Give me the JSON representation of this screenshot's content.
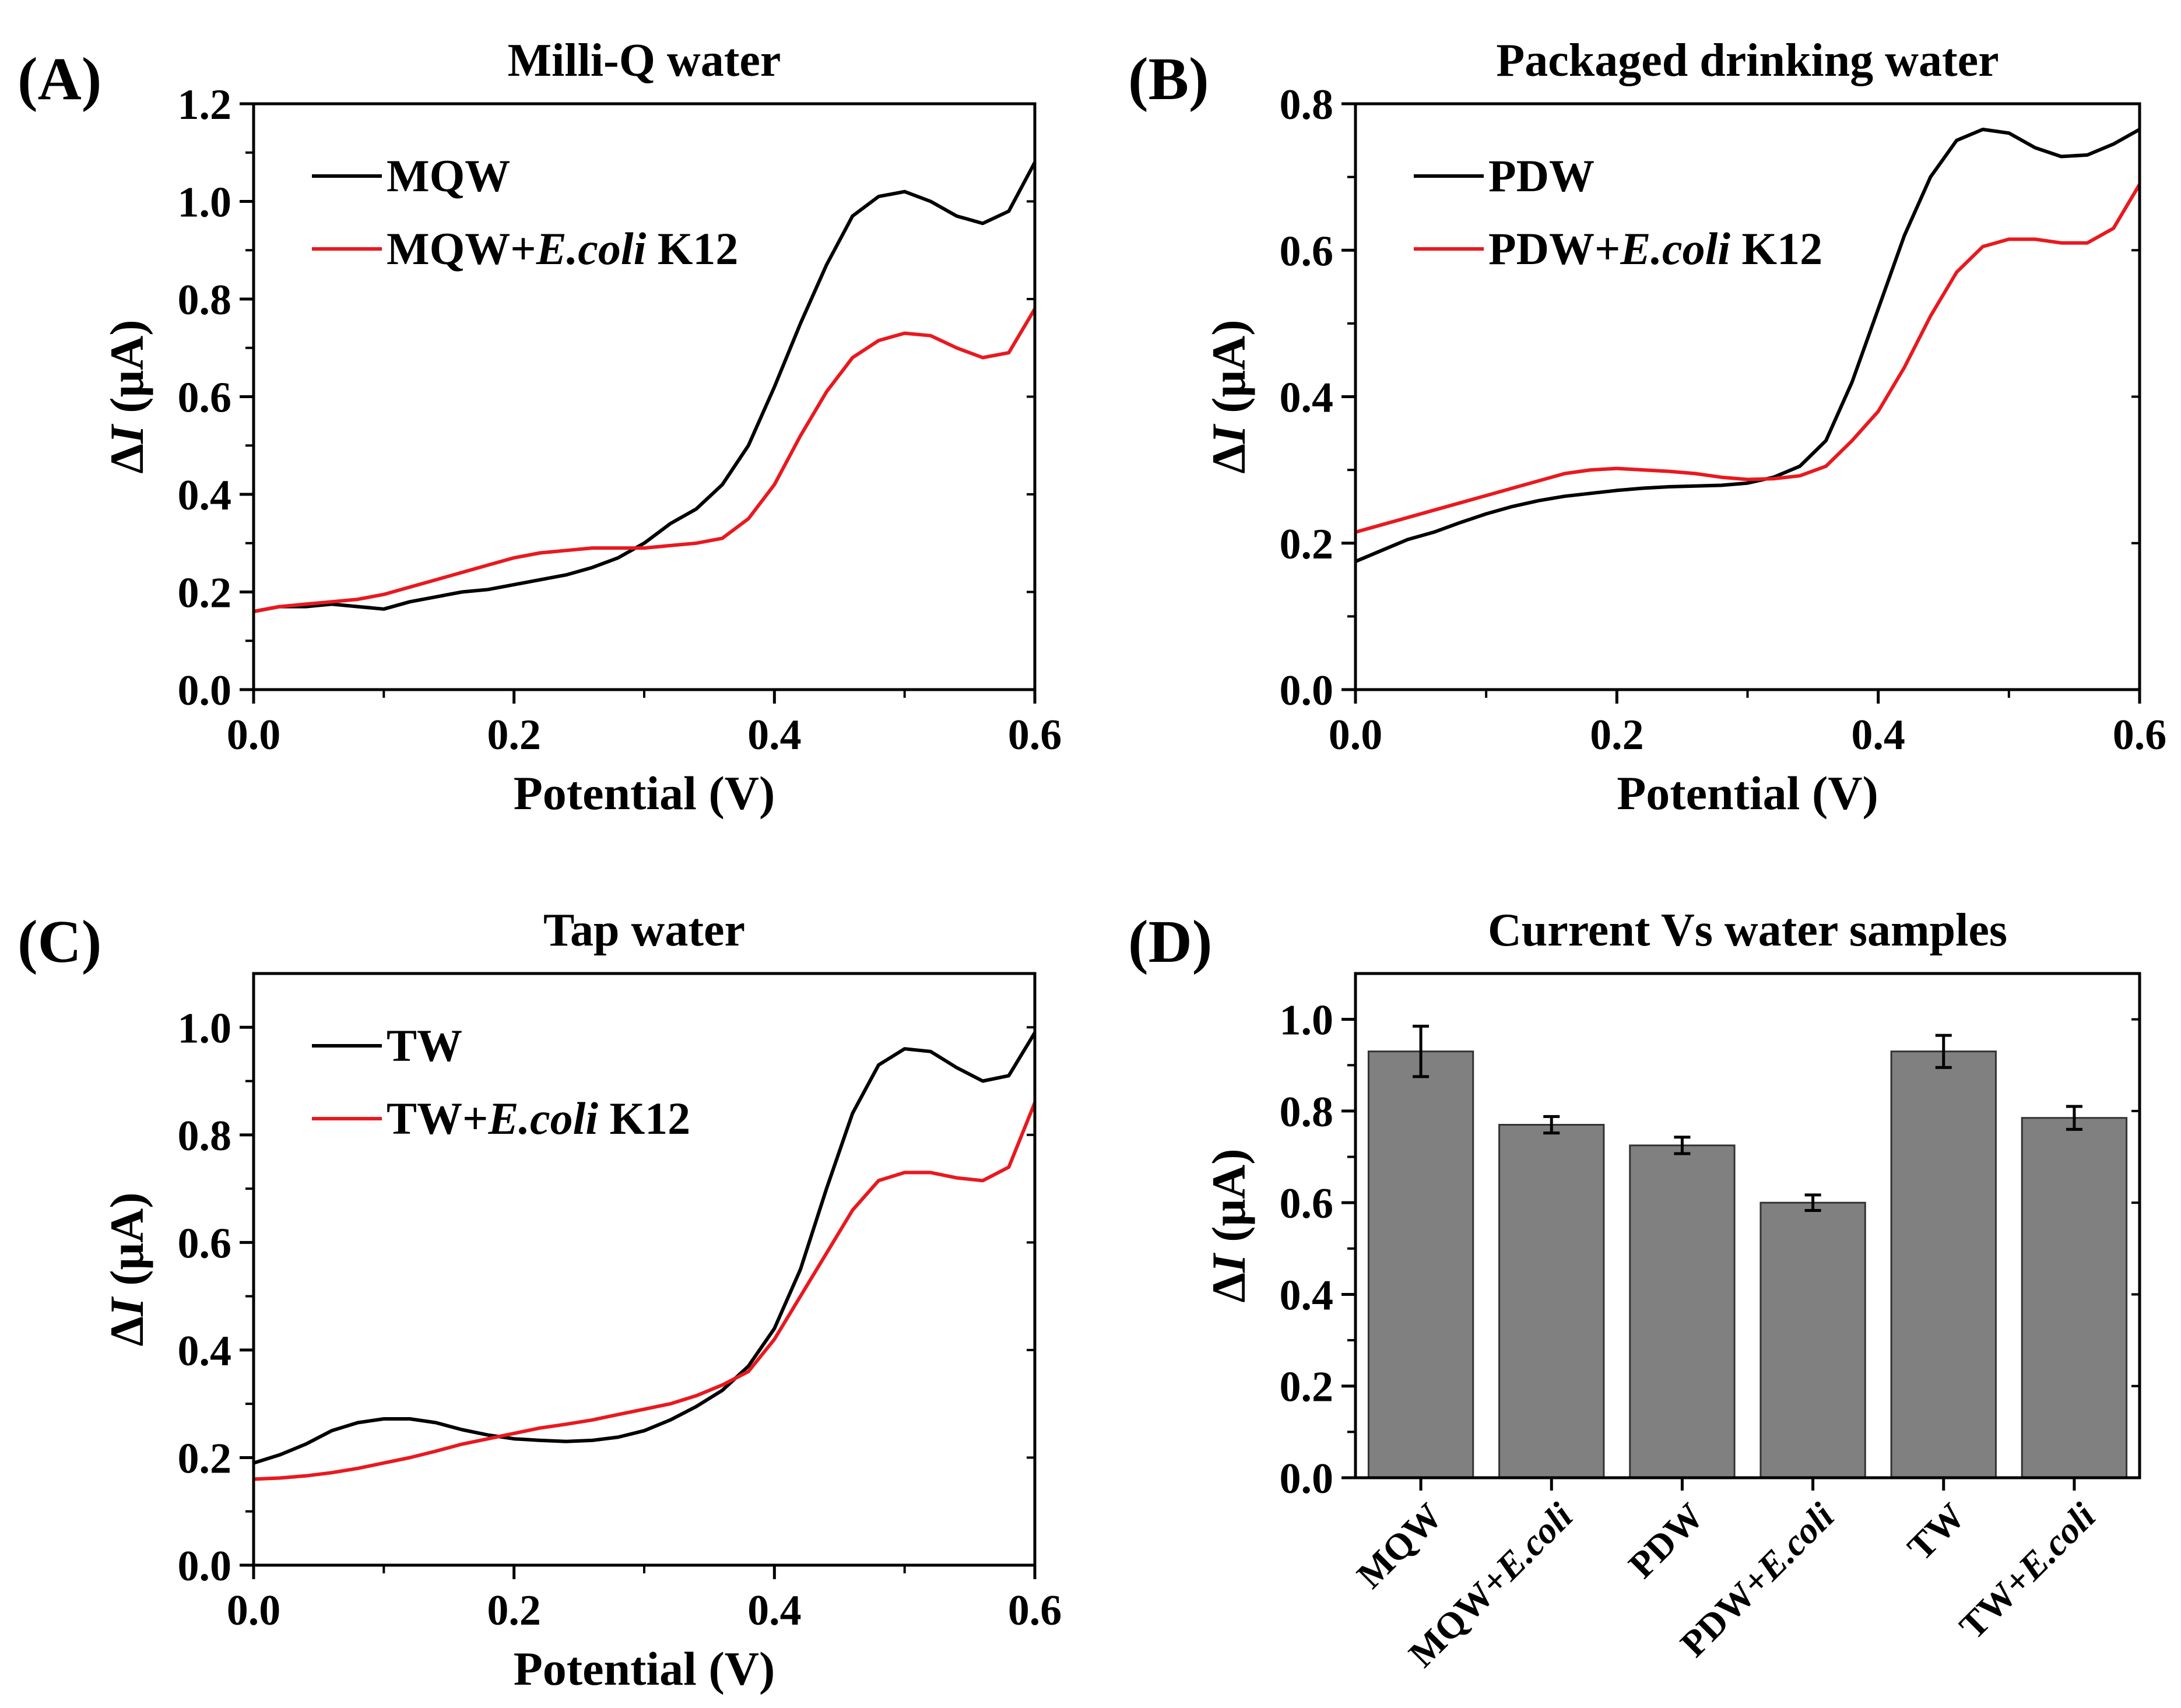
{
  "colors": {
    "black_series": "#000000",
    "red_series": "#e8191f",
    "bar_fill": "#808080"
  },
  "chart_data": [
    {
      "panel": "(A)",
      "type": "line",
      "title": "Milli-Q water",
      "xlabel": "Potential (V)",
      "ylabel_symbol": "ΔI",
      "ylabel_unit": "(μA)",
      "xlim": [
        0.0,
        0.6
      ],
      "ylim": [
        0.0,
        1.2
      ],
      "xticks": [
        "0.0",
        "0.2",
        "0.4",
        "0.6"
      ],
      "yticks": [
        "0.0",
        "0.2",
        "0.4",
        "0.6",
        "0.8",
        "1.0",
        "1.2"
      ],
      "legend_position": "top-left",
      "series": [
        {
          "name": "MQW",
          "legend_pre": "MQW",
          "legend_italic": "",
          "legend_post": "",
          "color": "#000000",
          "points": [
            [
              0.0,
              0.16
            ],
            [
              0.02,
              0.17
            ],
            [
              0.04,
              0.17
            ],
            [
              0.06,
              0.175
            ],
            [
              0.08,
              0.17
            ],
            [
              0.1,
              0.165
            ],
            [
              0.12,
              0.18
            ],
            [
              0.14,
              0.19
            ],
            [
              0.16,
              0.2
            ],
            [
              0.18,
              0.205
            ],
            [
              0.2,
              0.215
            ],
            [
              0.22,
              0.225
            ],
            [
              0.24,
              0.235
            ],
            [
              0.26,
              0.25
            ],
            [
              0.28,
              0.27
            ],
            [
              0.3,
              0.3
            ],
            [
              0.32,
              0.34
            ],
            [
              0.34,
              0.37
            ],
            [
              0.36,
              0.42
            ],
            [
              0.38,
              0.5
            ],
            [
              0.4,
              0.62
            ],
            [
              0.42,
              0.75
            ],
            [
              0.44,
              0.87
            ],
            [
              0.46,
              0.97
            ],
            [
              0.48,
              1.01
            ],
            [
              0.5,
              1.02
            ],
            [
              0.52,
              1.0
            ],
            [
              0.54,
              0.97
            ],
            [
              0.56,
              0.955
            ],
            [
              0.58,
              0.98
            ],
            [
              0.6,
              1.08
            ]
          ]
        },
        {
          "name": "MQW+E.coli K12",
          "legend_pre": "MQW+",
          "legend_italic": "E.coli",
          "legend_post": " K12",
          "color": "#e8191f",
          "points": [
            [
              0.0,
              0.16
            ],
            [
              0.02,
              0.17
            ],
            [
              0.04,
              0.175
            ],
            [
              0.06,
              0.18
            ],
            [
              0.08,
              0.185
            ],
            [
              0.1,
              0.195
            ],
            [
              0.12,
              0.21
            ],
            [
              0.14,
              0.225
            ],
            [
              0.16,
              0.24
            ],
            [
              0.18,
              0.255
            ],
            [
              0.2,
              0.27
            ],
            [
              0.22,
              0.28
            ],
            [
              0.24,
              0.285
            ],
            [
              0.26,
              0.29
            ],
            [
              0.28,
              0.29
            ],
            [
              0.3,
              0.29
            ],
            [
              0.32,
              0.295
            ],
            [
              0.34,
              0.3
            ],
            [
              0.36,
              0.31
            ],
            [
              0.38,
              0.35
            ],
            [
              0.4,
              0.42
            ],
            [
              0.42,
              0.52
            ],
            [
              0.44,
              0.61
            ],
            [
              0.46,
              0.68
            ],
            [
              0.48,
              0.715
            ],
            [
              0.5,
              0.73
            ],
            [
              0.52,
              0.725
            ],
            [
              0.54,
              0.7
            ],
            [
              0.56,
              0.68
            ],
            [
              0.58,
              0.69
            ],
            [
              0.6,
              0.78
            ]
          ]
        }
      ]
    },
    {
      "panel": "(B)",
      "type": "line",
      "title": "Packaged drinking water",
      "xlabel": "Potential (V)",
      "ylabel_symbol": "ΔI",
      "ylabel_unit": "(μA)",
      "xlim": [
        0.0,
        0.6
      ],
      "ylim": [
        0.0,
        0.8
      ],
      "xticks": [
        "0.0",
        "0.2",
        "0.4",
        "0.6"
      ],
      "yticks": [
        "0.0",
        "0.2",
        "0.4",
        "0.6",
        "0.8"
      ],
      "legend_position": "top-left",
      "series": [
        {
          "name": "PDW",
          "legend_pre": "PDW",
          "legend_italic": "",
          "legend_post": "",
          "color": "#000000",
          "points": [
            [
              0.0,
              0.175
            ],
            [
              0.02,
              0.19
            ],
            [
              0.04,
              0.205
            ],
            [
              0.06,
              0.215
            ],
            [
              0.08,
              0.228
            ],
            [
              0.1,
              0.24
            ],
            [
              0.12,
              0.25
            ],
            [
              0.14,
              0.258
            ],
            [
              0.16,
              0.264
            ],
            [
              0.18,
              0.268
            ],
            [
              0.2,
              0.272
            ],
            [
              0.22,
              0.275
            ],
            [
              0.24,
              0.277
            ],
            [
              0.26,
              0.278
            ],
            [
              0.28,
              0.279
            ],
            [
              0.3,
              0.282
            ],
            [
              0.32,
              0.29
            ],
            [
              0.34,
              0.305
            ],
            [
              0.36,
              0.34
            ],
            [
              0.38,
              0.42
            ],
            [
              0.4,
              0.52
            ],
            [
              0.42,
              0.62
            ],
            [
              0.44,
              0.7
            ],
            [
              0.46,
              0.75
            ],
            [
              0.48,
              0.765
            ],
            [
              0.5,
              0.76
            ],
            [
              0.52,
              0.74
            ],
            [
              0.54,
              0.728
            ],
            [
              0.56,
              0.73
            ],
            [
              0.58,
              0.745
            ],
            [
              0.6,
              0.765
            ]
          ]
        },
        {
          "name": "PDW+E.coli K12",
          "legend_pre": "PDW+",
          "legend_italic": "E.coli",
          "legend_post": " K12",
          "color": "#e8191f",
          "points": [
            [
              0.0,
              0.215
            ],
            [
              0.02,
              0.225
            ],
            [
              0.04,
              0.235
            ],
            [
              0.06,
              0.245
            ],
            [
              0.08,
              0.255
            ],
            [
              0.1,
              0.265
            ],
            [
              0.12,
              0.275
            ],
            [
              0.14,
              0.285
            ],
            [
              0.16,
              0.295
            ],
            [
              0.18,
              0.3
            ],
            [
              0.2,
              0.302
            ],
            [
              0.22,
              0.3
            ],
            [
              0.24,
              0.298
            ],
            [
              0.26,
              0.295
            ],
            [
              0.28,
              0.29
            ],
            [
              0.3,
              0.287
            ],
            [
              0.32,
              0.288
            ],
            [
              0.34,
              0.292
            ],
            [
              0.36,
              0.305
            ],
            [
              0.38,
              0.34
            ],
            [
              0.4,
              0.38
            ],
            [
              0.42,
              0.44
            ],
            [
              0.44,
              0.51
            ],
            [
              0.46,
              0.57
            ],
            [
              0.48,
              0.605
            ],
            [
              0.5,
              0.615
            ],
            [
              0.52,
              0.615
            ],
            [
              0.54,
              0.61
            ],
            [
              0.56,
              0.61
            ],
            [
              0.58,
              0.63
            ],
            [
              0.6,
              0.69
            ]
          ]
        }
      ]
    },
    {
      "panel": "(C)",
      "type": "line",
      "title": "Tap water",
      "xlabel": "Potential (V)",
      "ylabel_symbol": "ΔI",
      "ylabel_unit": "(μA)",
      "xlim": [
        0.0,
        0.6
      ],
      "ylim": [
        0.0,
        1.1
      ],
      "xticks": [
        "0.0",
        "0.2",
        "0.4",
        "0.6"
      ],
      "yticks": [
        "0.0",
        "0.2",
        "0.4",
        "0.6",
        "0.8",
        "1.0"
      ],
      "legend_position": "top-left",
      "series": [
        {
          "name": "TW",
          "legend_pre": "TW",
          "legend_italic": "",
          "legend_post": "",
          "color": "#000000",
          "points": [
            [
              0.0,
              0.19
            ],
            [
              0.02,
              0.205
            ],
            [
              0.04,
              0.225
            ],
            [
              0.06,
              0.25
            ],
            [
              0.08,
              0.265
            ],
            [
              0.1,
              0.272
            ],
            [
              0.12,
              0.272
            ],
            [
              0.14,
              0.265
            ],
            [
              0.16,
              0.252
            ],
            [
              0.18,
              0.242
            ],
            [
              0.2,
              0.235
            ],
            [
              0.22,
              0.232
            ],
            [
              0.24,
              0.23
            ],
            [
              0.26,
              0.232
            ],
            [
              0.28,
              0.238
            ],
            [
              0.3,
              0.25
            ],
            [
              0.32,
              0.27
            ],
            [
              0.34,
              0.295
            ],
            [
              0.36,
              0.325
            ],
            [
              0.38,
              0.37
            ],
            [
              0.4,
              0.44
            ],
            [
              0.42,
              0.55
            ],
            [
              0.44,
              0.7
            ],
            [
              0.46,
              0.84
            ],
            [
              0.48,
              0.93
            ],
            [
              0.5,
              0.96
            ],
            [
              0.52,
              0.955
            ],
            [
              0.54,
              0.925
            ],
            [
              0.56,
              0.9
            ],
            [
              0.58,
              0.91
            ],
            [
              0.6,
              0.99
            ]
          ]
        },
        {
          "name": "TW+E.coli K12",
          "legend_pre": "TW+",
          "legend_italic": "E.coli",
          "legend_post": " K12",
          "color": "#e8191f",
          "points": [
            [
              0.0,
              0.16
            ],
            [
              0.02,
              0.162
            ],
            [
              0.04,
              0.166
            ],
            [
              0.06,
              0.172
            ],
            [
              0.08,
              0.18
            ],
            [
              0.1,
              0.19
            ],
            [
              0.12,
              0.2
            ],
            [
              0.14,
              0.212
            ],
            [
              0.16,
              0.225
            ],
            [
              0.18,
              0.235
            ],
            [
              0.2,
              0.245
            ],
            [
              0.22,
              0.255
            ],
            [
              0.24,
              0.262
            ],
            [
              0.26,
              0.27
            ],
            [
              0.28,
              0.28
            ],
            [
              0.3,
              0.29
            ],
            [
              0.32,
              0.3
            ],
            [
              0.34,
              0.315
            ],
            [
              0.36,
              0.335
            ],
            [
              0.38,
              0.36
            ],
            [
              0.4,
              0.42
            ],
            [
              0.42,
              0.5
            ],
            [
              0.44,
              0.58
            ],
            [
              0.46,
              0.66
            ],
            [
              0.48,
              0.715
            ],
            [
              0.5,
              0.73
            ],
            [
              0.52,
              0.73
            ],
            [
              0.54,
              0.72
            ],
            [
              0.56,
              0.715
            ],
            [
              0.58,
              0.74
            ],
            [
              0.6,
              0.86
            ]
          ]
        }
      ]
    },
    {
      "panel": "(D)",
      "type": "bar",
      "title": "Current Vs water samples",
      "xlabel": "",
      "ylabel_symbol": "ΔI",
      "ylabel_unit": "(μA)",
      "ylim": [
        0.0,
        1.1
      ],
      "yticks": [
        "0.0",
        "0.2",
        "0.4",
        "0.6",
        "0.8",
        "1.0"
      ],
      "categories": [
        {
          "pre": "MQW",
          "italic": ""
        },
        {
          "pre": "MQW+",
          "italic": "E.coli"
        },
        {
          "pre": "PDW",
          "italic": ""
        },
        {
          "pre": "PDW+",
          "italic": "E.coli"
        },
        {
          "pre": "TW",
          "italic": ""
        },
        {
          "pre": "TW+",
          "italic": "E.coli"
        }
      ],
      "values": [
        0.93,
        0.77,
        0.725,
        0.6,
        0.93,
        0.785
      ],
      "errors": [
        0.055,
        0.018,
        0.018,
        0.017,
        0.035,
        0.025
      ]
    }
  ]
}
